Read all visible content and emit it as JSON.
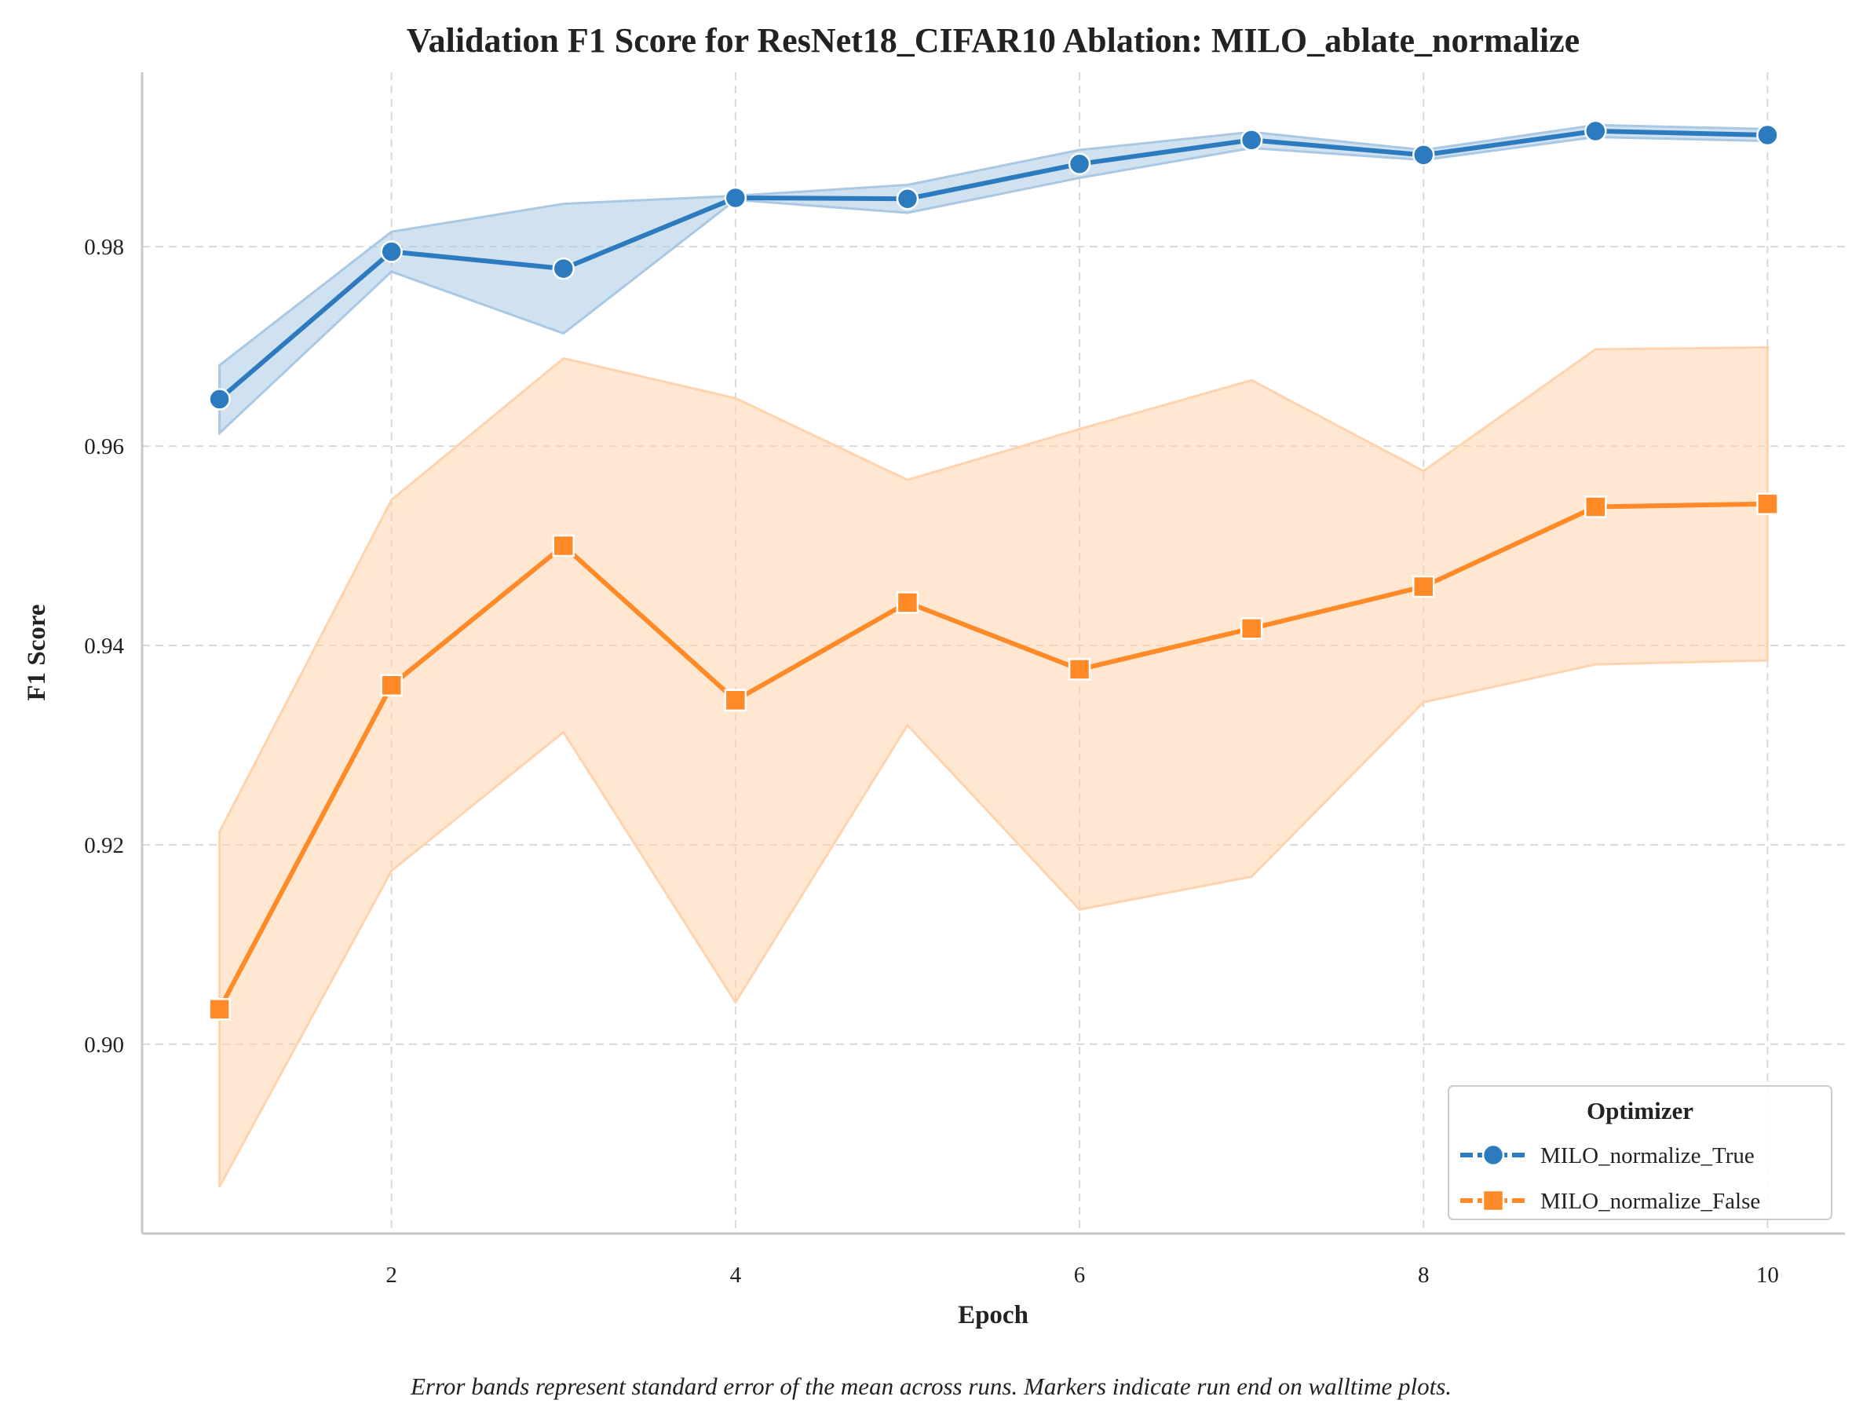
{
  "chart_data": {
    "type": "line",
    "title": "Validation F1 Score for ResNet18_CIFAR10 Ablation: MILO_ablate_normalize",
    "xlabel": "Epoch",
    "ylabel": "F1 Score",
    "caption": "Error bands represent standard error of the mean across runs. Markers indicate run end on walltime plots.",
    "x": [
      1,
      2,
      3,
      4,
      5,
      6,
      7,
      8,
      9,
      10
    ],
    "xlim": [
      0.55,
      10.45
    ],
    "ylim": [
      0.881,
      0.9975
    ],
    "x_ticks": [
      2,
      4,
      6,
      8,
      10
    ],
    "x_tick_labels": [
      "2",
      "4",
      "6",
      "8",
      "10"
    ],
    "y_ticks": [
      0.9,
      0.92,
      0.94,
      0.96,
      0.98
    ],
    "y_tick_labels": [
      "0.90",
      "0.92",
      "0.94",
      "0.96",
      "0.98"
    ],
    "grid": true,
    "legend": {
      "title": "Optimizer",
      "placement": "lower-right"
    },
    "series": [
      {
        "name": "MILO_normalize_True",
        "color": "#2c7bbf",
        "band_color": "#a9c8e3",
        "marker": "circle",
        "values": [
          0.9647,
          0.9795,
          0.9778,
          0.9849,
          0.9848,
          0.9883,
          0.9907,
          0.9892,
          0.9916,
          0.9912
        ],
        "lower": [
          0.9613,
          0.9775,
          0.9713,
          0.9847,
          0.9834,
          0.9869,
          0.9899,
          0.9887,
          0.991,
          0.9906
        ],
        "upper": [
          0.9681,
          0.9815,
          0.9843,
          0.9851,
          0.9862,
          0.9897,
          0.9915,
          0.9897,
          0.9922,
          0.9918
        ]
      },
      {
        "name": "MILO_normalize_False",
        "color": "#ff8a27",
        "band_color": "#ffd3ad",
        "marker": "square",
        "values": [
          0.9035,
          0.936,
          0.95,
          0.9345,
          0.9443,
          0.9376,
          0.9417,
          0.9459,
          0.9539,
          0.9542
        ],
        "lower": [
          0.8857,
          0.9174,
          0.9313,
          0.9042,
          0.932,
          0.9135,
          0.9168,
          0.9343,
          0.9381,
          0.9385
        ],
        "upper": [
          0.9213,
          0.9546,
          0.9688,
          0.9648,
          0.9566,
          0.9617,
          0.9666,
          0.9575,
          0.9697,
          0.9699
        ]
      }
    ]
  }
}
